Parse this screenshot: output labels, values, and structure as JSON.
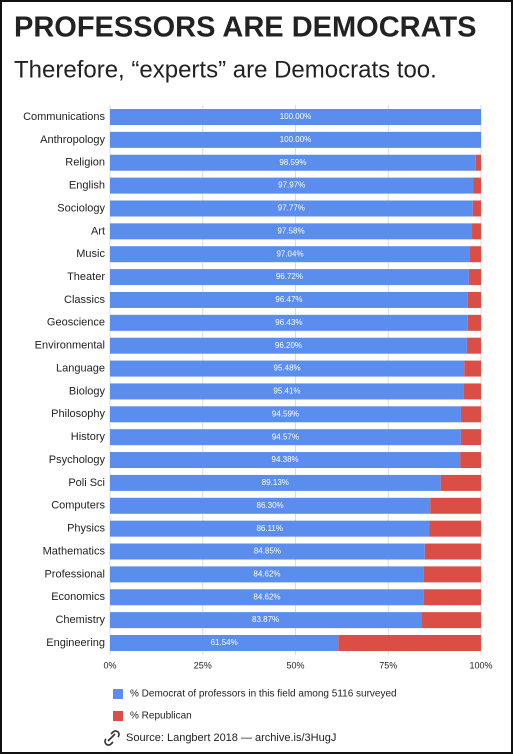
{
  "chart_data": {
    "type": "stacked_barh",
    "title": "PROFESSORS ARE DEMOCRATS",
    "subtitle": "Therefore, “experts” are Democrats too.",
    "source": "Source: Langbert 2018 — archive.is/3HugJ",
    "categories": [
      "Communications",
      "Anthropology",
      "Religion",
      "English",
      "Sociology",
      "Art",
      "Music",
      "Theater",
      "Classics",
      "Geoscience",
      "Environmental",
      "Language",
      "Biology",
      "Philosophy",
      "History",
      "Psychology",
      "Poli Sci",
      "Computers",
      "Physics",
      "Mathematics",
      "Professional",
      "Economics",
      "Chemistry",
      "Engineering"
    ],
    "series": [
      {
        "name": "% Democrat of professors in this field among 5116 surveyed",
        "color": "#5b8def",
        "values": [
          100,
          100,
          98.59,
          97.97,
          97.77,
          97.58,
          97.04,
          96.72,
          96.47,
          96.43,
          96.2,
          95.48,
          95.41,
          94.59,
          94.57,
          94.38,
          89.13,
          86.3,
          86.11,
          84.85,
          84.62,
          84.62,
          83.87,
          61.54
        ],
        "value_labels": [
          "100.00%",
          "100.00%",
          "98.59%",
          "97.97%",
          "97.77%",
          "97.58%",
          "97.04%",
          "96.72%",
          "96.47%",
          "96.43%",
          "96.20%",
          "95.48%",
          "95.41%",
          "94.59%",
          "94.57%",
          "94.38%",
          "89.13%",
          "86.30%",
          "86.11%",
          "84.85%",
          "84.62%",
          "84.62%",
          "83.87%",
          "61.54%"
        ]
      },
      {
        "name": "% Republican",
        "color": "#db4e45",
        "values": [
          0,
          0,
          1.41,
          2.03,
          2.23,
          2.42,
          2.96,
          3.28,
          3.53,
          3.57,
          3.8,
          4.52,
          4.59,
          5.41,
          5.43,
          5.62,
          10.87,
          13.7,
          13.89,
          15.15,
          15.38,
          15.38,
          16.13,
          38.46
        ]
      }
    ],
    "xlim": [
      0,
      100
    ],
    "xticks": [
      {
        "value": 0,
        "label": "0%"
      },
      {
        "value": 25,
        "label": "25%"
      },
      {
        "value": 50,
        "label": "50%"
      },
      {
        "value": 75,
        "label": "75%"
      },
      {
        "value": 100,
        "label": "100%"
      }
    ],
    "grid": true
  }
}
